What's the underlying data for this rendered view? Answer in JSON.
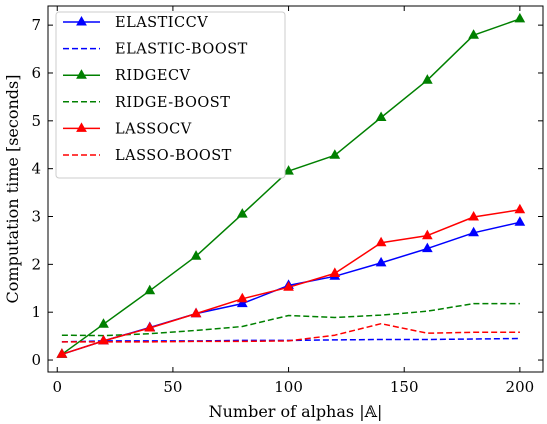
{
  "chart_data": {
    "type": "line",
    "xlabel": "Number of alphas |𝔸|",
    "ylabel": "Computation time [seconds]",
    "xlim": [
      -4,
      210
    ],
    "ylim": [
      -0.25,
      7.4
    ],
    "xticks": [
      0,
      50,
      100,
      150,
      200
    ],
    "yticks": [
      0,
      1,
      2,
      3,
      4,
      5,
      6,
      7
    ],
    "grid": false,
    "legend_position": "top-left",
    "series": [
      {
        "name": "ELASTICCV",
        "color": "#0000ff",
        "style": "solid",
        "marker": "triangle",
        "x": [
          2,
          20,
          40,
          60,
          80,
          100,
          120,
          140,
          160,
          180,
          200
        ],
        "y": [
          0.12,
          0.4,
          0.68,
          0.97,
          1.18,
          1.56,
          1.75,
          2.03,
          2.33,
          2.66,
          2.88
        ]
      },
      {
        "name": "ELASTIC-BOOST",
        "color": "#0000ff",
        "style": "dashed",
        "marker": "none",
        "x": [
          2,
          20,
          40,
          60,
          80,
          100,
          120,
          140,
          160,
          180,
          200
        ],
        "y": [
          0.38,
          0.4,
          0.4,
          0.4,
          0.41,
          0.41,
          0.42,
          0.43,
          0.43,
          0.44,
          0.45
        ]
      },
      {
        "name": "RIDGECV",
        "color": "#008000",
        "style": "solid",
        "marker": "triangle",
        "x": [
          2,
          20,
          40,
          60,
          80,
          100,
          120,
          140,
          160,
          180,
          200
        ],
        "y": [
          0.12,
          0.75,
          1.45,
          2.17,
          3.05,
          3.95,
          4.28,
          5.07,
          5.85,
          6.79,
          7.13
        ]
      },
      {
        "name": "RIDGE-BOOST",
        "color": "#008000",
        "style": "dashed",
        "marker": "none",
        "x": [
          2,
          20,
          40,
          60,
          80,
          100,
          120,
          140,
          160,
          180,
          200
        ],
        "y": [
          0.52,
          0.51,
          0.55,
          0.62,
          0.7,
          0.93,
          0.89,
          0.94,
          1.02,
          1.18,
          1.18
        ]
      },
      {
        "name": "LASSOCV",
        "color": "#ff0000",
        "style": "solid",
        "marker": "triangle",
        "x": [
          2,
          20,
          40,
          60,
          80,
          100,
          120,
          140,
          160,
          180,
          200
        ],
        "y": [
          0.12,
          0.4,
          0.67,
          0.97,
          1.28,
          1.52,
          1.81,
          2.45,
          2.6,
          2.99,
          3.14
        ]
      },
      {
        "name": "LASSO-BOOST",
        "color": "#ff0000",
        "style": "dashed",
        "marker": "none",
        "x": [
          2,
          20,
          40,
          60,
          80,
          100,
          120,
          140,
          160,
          180,
          200
        ],
        "y": [
          0.38,
          0.38,
          0.38,
          0.39,
          0.39,
          0.4,
          0.52,
          0.76,
          0.56,
          0.58,
          0.58
        ]
      }
    ]
  }
}
